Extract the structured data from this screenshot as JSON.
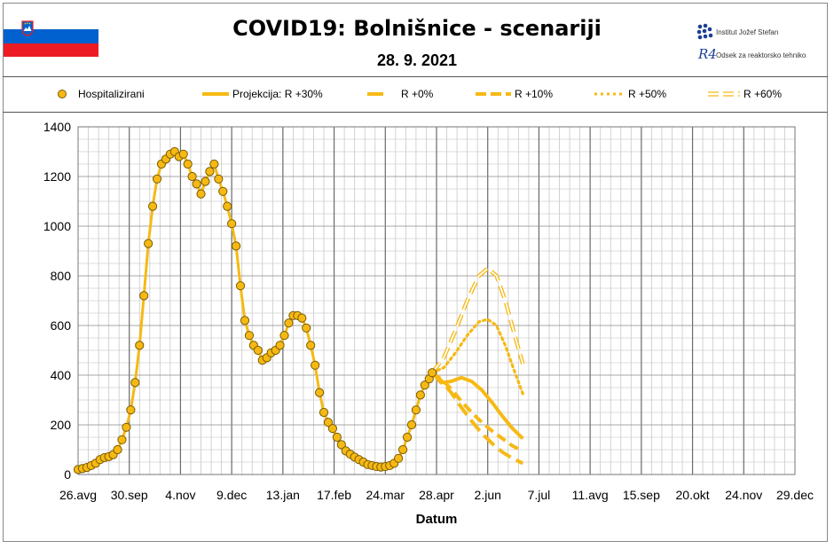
{
  "header": {
    "title": "COVID19: Bolnišnice - scenariji",
    "date": "28. 9. 2021",
    "institute_name": "Institut Jožef Stefan",
    "department_name": "Odsek za reaktorsko tehniko",
    "dept_logo_text": "R4",
    "flag_colors": [
      "#ffffff",
      "#0061cf",
      "#ed1c24"
    ]
  },
  "legend": {
    "items": [
      {
        "label": "Hospitalizirani",
        "style": "markers"
      },
      {
        "label": "Projekcija: R +30%",
        "style": "solid"
      },
      {
        "label": "R +0%",
        "style": "dash-long"
      },
      {
        "label": "R +10%",
        "style": "dash"
      },
      {
        "label": "R +50%",
        "style": "dot"
      },
      {
        "label": "R +60%",
        "style": "double-dash"
      }
    ]
  },
  "chart_data": {
    "type": "line",
    "xlabel": "Datum",
    "ylabel": "",
    "ylim": [
      0,
      1400
    ],
    "yticks": [
      0,
      200,
      400,
      600,
      800,
      1000,
      1200,
      1400
    ],
    "x_ticks": [
      "26.avg",
      "30.sep",
      "4.nov",
      "9.dec",
      "13.jan",
      "17.feb",
      "24.mar",
      "28.apr",
      "2.jun",
      "7.jul",
      "11.avg",
      "15.sep",
      "20.okt",
      "24.nov",
      "29.dec"
    ],
    "x_unit": "days since 26.avg 2020 (x tick spacing 35 days)",
    "grid": true,
    "series": [
      {
        "name": "Hospitalizirani",
        "color": "#f6b914",
        "marker": "circle",
        "points": [
          [
            0,
            20
          ],
          [
            3,
            24
          ],
          [
            6,
            28
          ],
          [
            9,
            36
          ],
          [
            12,
            45
          ],
          [
            15,
            60
          ],
          [
            18,
            68
          ],
          [
            21,
            72
          ],
          [
            24,
            80
          ],
          [
            27,
            100
          ],
          [
            30,
            140
          ],
          [
            33,
            190
          ],
          [
            36,
            260
          ],
          [
            39,
            370
          ],
          [
            42,
            520
          ],
          [
            45,
            720
          ],
          [
            48,
            930
          ],
          [
            51,
            1080
          ],
          [
            54,
            1190
          ],
          [
            57,
            1250
          ],
          [
            60,
            1270
          ],
          [
            63,
            1290
          ],
          [
            66,
            1300
          ],
          [
            69,
            1280
          ],
          [
            72,
            1290
          ],
          [
            75,
            1250
          ],
          [
            78,
            1200
          ],
          [
            81,
            1170
          ],
          [
            84,
            1130
          ],
          [
            87,
            1180
          ],
          [
            90,
            1220
          ],
          [
            93,
            1250
          ],
          [
            96,
            1190
          ],
          [
            99,
            1140
          ],
          [
            102,
            1080
          ],
          [
            105,
            1010
          ],
          [
            108,
            920
          ],
          [
            111,
            760
          ],
          [
            114,
            620
          ],
          [
            117,
            560
          ],
          [
            120,
            520
          ],
          [
            123,
            500
          ],
          [
            126,
            460
          ],
          [
            129,
            470
          ],
          [
            132,
            490
          ],
          [
            135,
            500
          ],
          [
            138,
            520
          ],
          [
            141,
            560
          ],
          [
            144,
            610
          ],
          [
            147,
            640
          ],
          [
            150,
            640
          ],
          [
            153,
            630
          ],
          [
            156,
            590
          ],
          [
            159,
            520
          ],
          [
            162,
            440
          ],
          [
            165,
            330
          ],
          [
            168,
            250
          ],
          [
            171,
            210
          ],
          [
            174,
            185
          ],
          [
            177,
            150
          ],
          [
            180,
            120
          ],
          [
            183,
            95
          ],
          [
            186,
            82
          ],
          [
            189,
            70
          ],
          [
            192,
            60
          ],
          [
            195,
            50
          ],
          [
            198,
            40
          ],
          [
            201,
            36
          ],
          [
            204,
            32
          ],
          [
            207,
            30
          ],
          [
            210,
            32
          ],
          [
            213,
            36
          ],
          [
            216,
            45
          ],
          [
            219,
            65
          ],
          [
            222,
            100
          ],
          [
            225,
            150
          ],
          [
            228,
            200
          ],
          [
            231,
            260
          ],
          [
            234,
            320
          ],
          [
            237,
            360
          ],
          [
            240,
            385
          ],
          [
            242,
            410
          ]
        ]
      },
      {
        "name": "Projekcija: R +30%",
        "color": "#f6b914",
        "style": "solid",
        "points": [
          [
            242,
            410
          ],
          [
            248,
            370
          ],
          [
            255,
            375
          ],
          [
            262,
            390
          ],
          [
            269,
            375
          ],
          [
            276,
            340
          ],
          [
            283,
            290
          ],
          [
            290,
            235
          ],
          [
            297,
            185
          ],
          [
            304,
            145
          ]
        ]
      },
      {
        "name": "R +0%",
        "color": "#f6b914",
        "style": "dash-long",
        "points": [
          [
            242,
            410
          ],
          [
            248,
            380
          ],
          [
            255,
            330
          ],
          [
            262,
            270
          ],
          [
            269,
            215
          ],
          [
            276,
            165
          ],
          [
            283,
            125
          ],
          [
            290,
            90
          ],
          [
            297,
            65
          ],
          [
            304,
            45
          ]
        ]
      },
      {
        "name": "R +10%",
        "color": "#f6b914",
        "style": "dash",
        "points": [
          [
            242,
            410
          ],
          [
            248,
            385
          ],
          [
            255,
            345
          ],
          [
            262,
            295
          ],
          [
            269,
            250
          ],
          [
            276,
            210
          ],
          [
            283,
            175
          ],
          [
            290,
            145
          ],
          [
            297,
            115
          ],
          [
            304,
            95
          ]
        ]
      },
      {
        "name": "R +50%",
        "color": "#f6b914",
        "style": "dot",
        "points": [
          [
            242,
            410
          ],
          [
            250,
            430
          ],
          [
            258,
            490
          ],
          [
            266,
            560
          ],
          [
            274,
            615
          ],
          [
            280,
            625
          ],
          [
            286,
            600
          ],
          [
            292,
            520
          ],
          [
            298,
            420
          ],
          [
            304,
            325
          ]
        ]
      },
      {
        "name": "R +60%",
        "color": "#f6b914",
        "style": "double-dash",
        "points": [
          [
            242,
            410
          ],
          [
            250,
            470
          ],
          [
            258,
            580
          ],
          [
            266,
            700
          ],
          [
            274,
            800
          ],
          [
            280,
            830
          ],
          [
            286,
            800
          ],
          [
            292,
            700
          ],
          [
            298,
            570
          ],
          [
            304,
            445
          ]
        ]
      }
    ]
  }
}
